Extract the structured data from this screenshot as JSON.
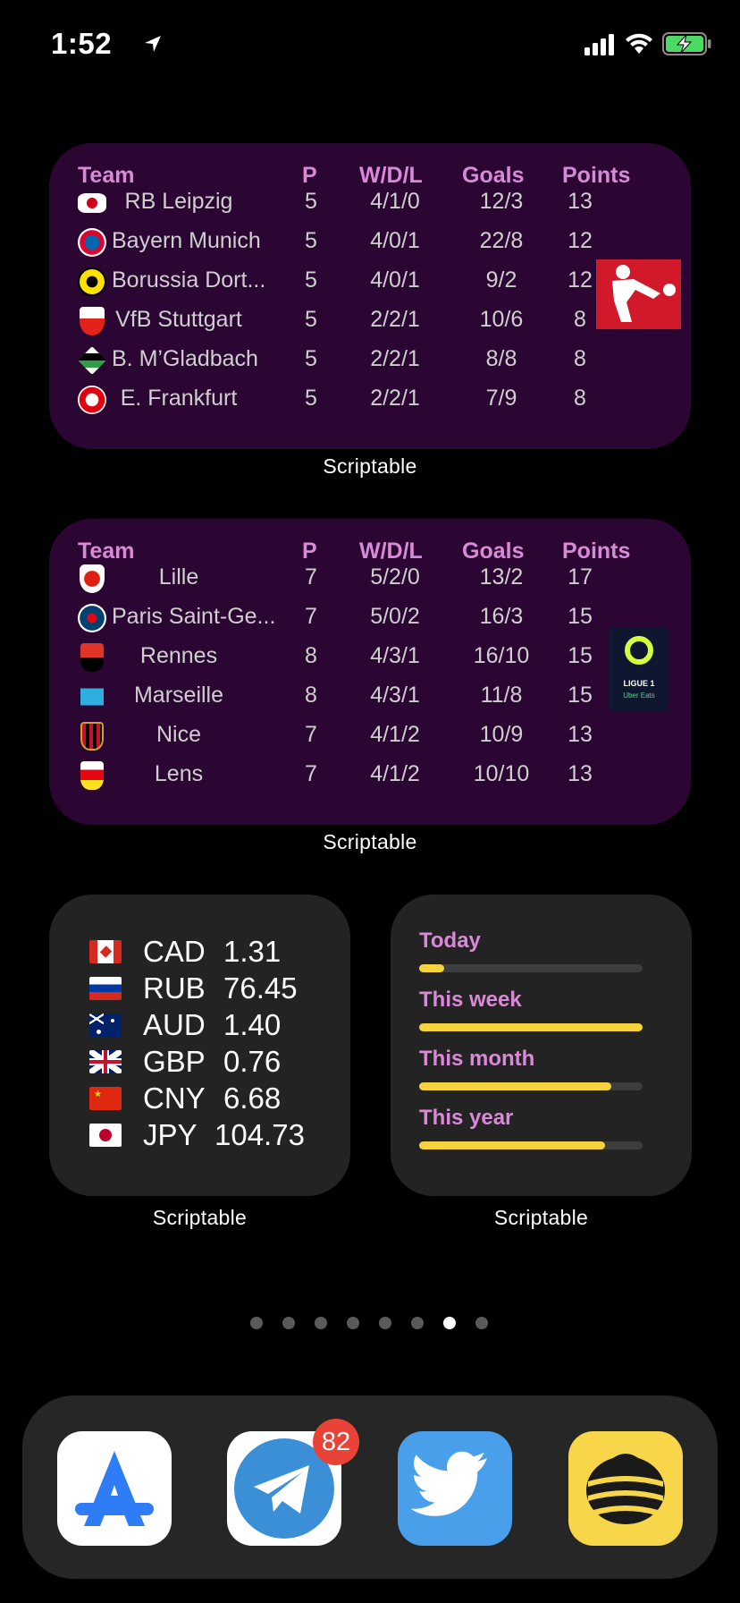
{
  "status_bar": {
    "time": "1:52"
  },
  "widgets": {
    "bundesliga": {
      "label": "Scriptable",
      "headers": {
        "team": "Team",
        "p": "P",
        "wdl": "W/D/L",
        "goals": "Goals",
        "points": "Points"
      },
      "rows": [
        {
          "team": "RB Leipzig",
          "p": "5",
          "wdl": "4/1/0",
          "goals": "12/3",
          "points": "13"
        },
        {
          "team": "Bayern Munich",
          "p": "5",
          "wdl": "4/0/1",
          "goals": "22/8",
          "points": "12"
        },
        {
          "team": "Borussia Dort...",
          "p": "5",
          "wdl": "4/0/1",
          "goals": "9/2",
          "points": "12"
        },
        {
          "team": "VfB Stuttgart",
          "p": "5",
          "wdl": "2/2/1",
          "goals": "10/6",
          "points": "8"
        },
        {
          "team": "B. M’Gladbach",
          "p": "5",
          "wdl": "2/2/1",
          "goals": "8/8",
          "points": "8"
        },
        {
          "team": "E. Frankfurt",
          "p": "5",
          "wdl": "2/2/1",
          "goals": "7/9",
          "points": "8"
        }
      ]
    },
    "ligue1": {
      "label": "Scriptable",
      "logo_line1": "LIGUE 1",
      "logo_line2": "Uber Eats",
      "headers": {
        "team": "Team",
        "p": "P",
        "wdl": "W/D/L",
        "goals": "Goals",
        "points": "Points"
      },
      "rows": [
        {
          "team": "Lille",
          "p": "7",
          "wdl": "5/2/0",
          "goals": "13/2",
          "points": "17"
        },
        {
          "team": "Paris Saint-Ge...",
          "p": "7",
          "wdl": "5/0/2",
          "goals": "16/3",
          "points": "15"
        },
        {
          "team": "Rennes",
          "p": "8",
          "wdl": "4/3/1",
          "goals": "16/10",
          "points": "15"
        },
        {
          "team": "Marseille",
          "p": "8",
          "wdl": "4/3/1",
          "goals": "11/8",
          "points": "15"
        },
        {
          "team": "Nice",
          "p": "7",
          "wdl": "4/1/2",
          "goals": "10/9",
          "points": "13"
        },
        {
          "team": "Lens",
          "p": "7",
          "wdl": "4/1/2",
          "goals": "10/10",
          "points": "13"
        }
      ]
    },
    "currency": {
      "label": "Scriptable",
      "rows": [
        {
          "code": "CAD",
          "rate": "1.31",
          "flag": "canada-flag-icon"
        },
        {
          "code": "RUB",
          "rate": "76.45",
          "flag": "russia-flag-icon"
        },
        {
          "code": "AUD",
          "rate": "1.40",
          "flag": "australia-flag-icon"
        },
        {
          "code": "GBP",
          "rate": "0.76",
          "flag": "uk-flag-icon"
        },
        {
          "code": "CNY",
          "rate": "6.68",
          "flag": "china-flag-icon"
        },
        {
          "code": "JPY",
          "rate": "104.73",
          "flag": "japan-flag-icon"
        }
      ]
    },
    "progress": {
      "label": "Scriptable",
      "items": [
        {
          "label": "Today",
          "fraction": 0.11
        },
        {
          "label": "This week",
          "fraction": 1.0
        },
        {
          "label": "This month",
          "fraction": 0.86
        },
        {
          "label": "This year",
          "fraction": 0.83
        }
      ]
    }
  },
  "page_dots": {
    "count": 8,
    "active_index": 6
  },
  "dock": {
    "apps": [
      {
        "name": "App Store",
        "icon": "app-store-icon"
      },
      {
        "name": "Telegram",
        "icon": "telegram-icon",
        "badge": "82"
      },
      {
        "name": "Twitter",
        "icon": "twitter-icon"
      },
      {
        "name": "Beeline",
        "icon": "beeline-icon"
      }
    ]
  },
  "colors": {
    "league_widget_bg": "#2b0633",
    "header_accent": "#d98ad6",
    "progress_fill": "#f4d33c",
    "badge": "#e94237"
  }
}
